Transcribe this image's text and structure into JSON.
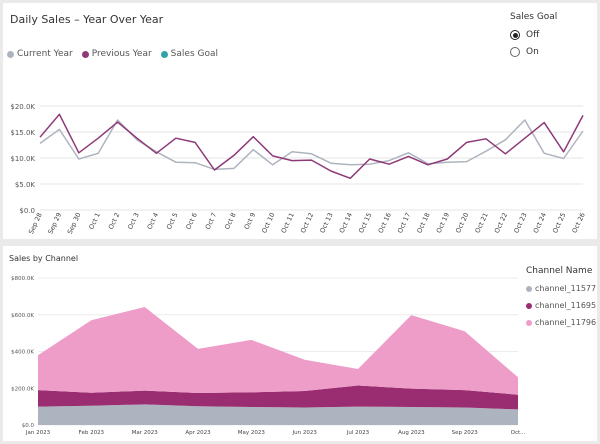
{
  "top_chart": {
    "title": "Daily Sales – Year Over Year",
    "legend": [
      {
        "label": "Current Year",
        "color": "#aeb4bf"
      },
      {
        "label": "Previous Year",
        "color": "#8e3978"
      },
      {
        "label": "Sales Goal",
        "color": "#2fa3a5"
      }
    ]
  },
  "sales_goal": {
    "title": "Sales Goal",
    "options": [
      "Off",
      "On"
    ],
    "selected": "Off"
  },
  "bottom_chart": {
    "title": "Sales by Channel",
    "legend_title": "Channel Name",
    "legend": [
      {
        "label": "channel_11577",
        "color": "#aeb4bf"
      },
      {
        "label": "channel_11695",
        "color": "#9a2d72"
      },
      {
        "label": "channel_11796",
        "color": "#ee9cc8"
      }
    ]
  },
  "chart_data": [
    {
      "type": "line",
      "title": "Daily Sales – Year Over Year",
      "x": [
        "Sep 28",
        "Sep 29",
        "Sep 30",
        "Oct 1",
        "Oct 2",
        "Oct 3",
        "Oct 4",
        "Oct 5",
        "Oct 6",
        "Oct 7",
        "Oct 8",
        "Oct 9",
        "Oct 10",
        "Oct 11",
        "Oct 12",
        "Oct 13",
        "Oct 14",
        "Oct 15",
        "Oct 16",
        "Oct 17",
        "Oct 18",
        "Oct 19",
        "Oct 20",
        "Oct 21",
        "Oct 22",
        "Oct 23",
        "Oct 24",
        "Oct 25",
        "Oct 26"
      ],
      "yticks": [
        "$0.0",
        "$5.0K",
        "$10.0K",
        "$15.0K",
        "$20.0K"
      ],
      "ylim": [
        0,
        20000
      ],
      "series": [
        {
          "name": "Current Year",
          "color": "#aeb4bf",
          "values": [
            12800,
            15500,
            9800,
            10900,
            17300,
            13500,
            11200,
            9200,
            9100,
            7800,
            8000,
            11600,
            8700,
            11200,
            10800,
            9000,
            8700,
            8800,
            9500,
            11000,
            8900,
            9200,
            9300,
            11300,
            13500,
            17300,
            10900,
            9900,
            15200
          ]
        },
        {
          "name": "Previous Year",
          "color": "#8e3978",
          "values": [
            14000,
            18400,
            11000,
            13800,
            16900,
            13800,
            10900,
            13800,
            13000,
            7700,
            10500,
            14100,
            10400,
            9500,
            9600,
            7500,
            6100,
            9800,
            8800,
            10300,
            8700,
            9800,
            13000,
            13700,
            10800,
            13800,
            16800,
            11200,
            18200
          ]
        }
      ]
    },
    {
      "type": "area",
      "title": "Sales by Channel",
      "x": [
        "Jan 2023",
        "Feb 2023",
        "Mar 2023",
        "Apr 2023",
        "May 2023",
        "Jun 2023",
        "Jul 2023",
        "Aug 2023",
        "Sep 2023",
        "Oct..."
      ],
      "yticks": [
        "$0.0",
        "$200.0K",
        "$400.0K",
        "$600.0K",
        "$800.0K"
      ],
      "ylim": [
        0,
        800000
      ],
      "stacked": true,
      "series": [
        {
          "name": "channel_11577",
          "color": "#aeb4bf",
          "values": [
            100000,
            105000,
            112000,
            102000,
            98000,
            95000,
            100000,
            98000,
            95000,
            85000
          ]
        },
        {
          "name": "channel_11695",
          "color": "#9a2d72",
          "values": [
            90000,
            70000,
            75000,
            72000,
            80000,
            90000,
            115000,
            100000,
            95000,
            80000
          ]
        },
        {
          "name": "channel_11796",
          "color": "#ee9cc8",
          "values": [
            190000,
            395000,
            455000,
            240000,
            285000,
            170000,
            90000,
            400000,
            320000,
            95000
          ]
        }
      ]
    }
  ]
}
